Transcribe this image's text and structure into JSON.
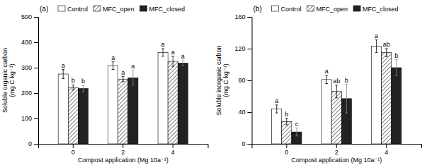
{
  "chart_data": [
    {
      "type": "bar",
      "title": "(a)",
      "x_label": "Compost application (Mg 10a⁻¹)",
      "y_label": "Soluble organic carbon\n(mg C kg⁻¹)",
      "categories": [
        "0",
        "2",
        "4"
      ],
      "ylim": [
        0,
        500
      ],
      "yticks": [
        0,
        100,
        200,
        300,
        400,
        500
      ],
      "series": [
        {
          "name": "Control",
          "color": "#ffffff",
          "values": [
            275,
            308,
            360
          ],
          "errors": [
            18,
            15,
            15
          ],
          "letters": [
            "a",
            "a",
            "a"
          ]
        },
        {
          "name": "MFC_open",
          "color": "#ffffff",
          "values": [
            222,
            255,
            325
          ],
          "errors": [
            10,
            10,
            20
          ],
          "letters": [
            "b",
            "a",
            "a"
          ]
        },
        {
          "name": "MFC_closed",
          "color": "#222222",
          "values": [
            218,
            260,
            318
          ],
          "errors": [
            12,
            28,
            10
          ],
          "letters": [
            "b",
            "a",
            "a"
          ]
        }
      ]
    },
    {
      "type": "bar",
      "title": "(b)",
      "x_label": "Compost application (Mg 10a⁻¹)",
      "y_label": "Soluble inorganic carbon\n(mg C kg⁻¹)",
      "categories": [
        "0",
        "2",
        "4"
      ],
      "ylim": [
        0,
        160
      ],
      "yticks": [
        0,
        40,
        80,
        120,
        160
      ],
      "series": [
        {
          "name": "Control",
          "color": "#ffffff",
          "values": [
            44,
            81,
            123
          ],
          "errors": [
            5,
            5,
            8
          ],
          "letters": [
            "a",
            "a",
            "a"
          ]
        },
        {
          "name": "MFC_open",
          "color": "#ffffff",
          "values": [
            28,
            66,
            115
          ],
          "errors": [
            4,
            8,
            5
          ],
          "letters": [
            "b",
            "ab",
            "ab"
          ]
        },
        {
          "name": "MFC_closed",
          "color": "#222222",
          "values": [
            15,
            57,
            96
          ],
          "errors": [
            5,
            18,
            10
          ],
          "letters": [
            "c",
            "b",
            "b"
          ]
        }
      ]
    }
  ]
}
